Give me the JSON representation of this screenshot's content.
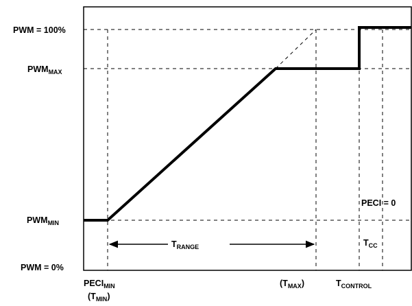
{
  "colors": {
    "line": "#000000",
    "background": "#ffffff"
  },
  "y_labels": {
    "pwm_100": "PWM = 100%",
    "pwm_max": {
      "main": "PWM",
      "sub": "MAX"
    },
    "pwm_min": {
      "main": "PWM",
      "sub": "MIN"
    },
    "pwm_0": "PWM = 0%"
  },
  "x_labels": {
    "peci_min": {
      "main": "PECI",
      "sub": "MIN"
    },
    "t_min": {
      "open": "(T",
      "sub": "MIN",
      "close": ")"
    },
    "t_max": {
      "open": "(T",
      "sub": "MAX",
      "close": ")"
    },
    "t_control": {
      "main": "T",
      "sub": "CONTROL"
    }
  },
  "annotations": {
    "t_range": {
      "main": "T",
      "sub": "RANGE"
    },
    "t_cc": {
      "main": "T",
      "sub": "CC"
    },
    "peci_zero": "PECI = 0"
  }
}
